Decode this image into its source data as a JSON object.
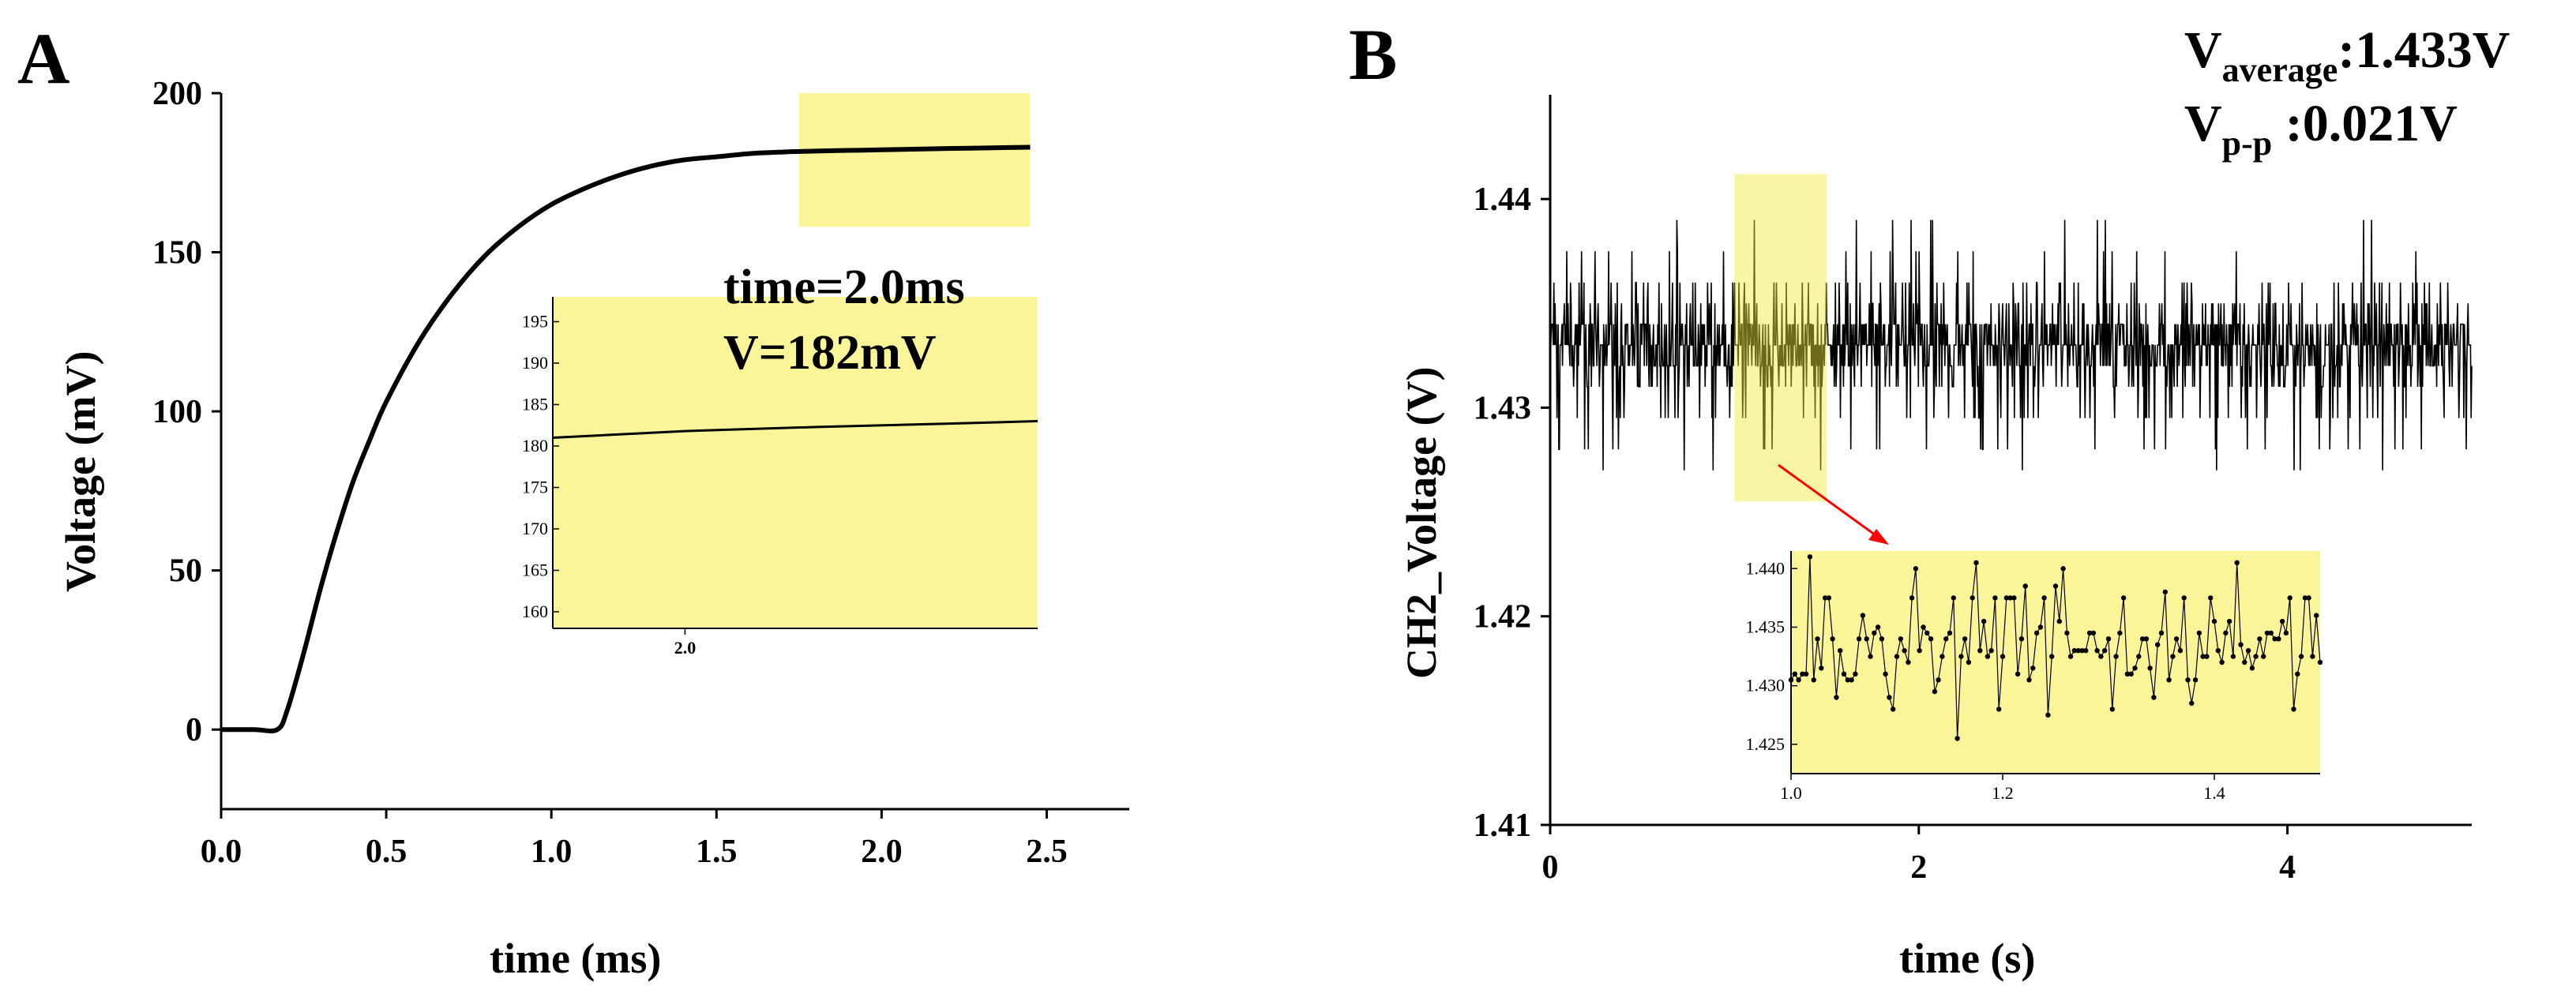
{
  "chart_data": [
    {
      "panel": "A",
      "type": "line",
      "xlabel": "time (ms)",
      "ylabel": "Voltage (mV)",
      "xlim": [
        0.0,
        2.75
      ],
      "ylim": [
        -25,
        200
      ],
      "xticks": [
        0.0,
        0.5,
        1.0,
        1.5,
        2.0,
        2.5
      ],
      "xtick_labels": [
        "0.0",
        "0.5",
        "1.0",
        "1.5",
        "2.0",
        "2.5"
      ],
      "yticks": [
        0,
        50,
        100,
        150,
        200
      ],
      "ytick_labels": [
        "0",
        "50",
        "100",
        "150",
        "200"
      ],
      "series": [
        {
          "name": "Voltage",
          "x": [
            0.0,
            0.1,
            0.17,
            0.2,
            0.25,
            0.3,
            0.35,
            0.4,
            0.45,
            0.5,
            0.6,
            0.7,
            0.8,
            0.9,
            1.0,
            1.1,
            1.2,
            1.3,
            1.4,
            1.5,
            1.6,
            1.7,
            1.8,
            1.9,
            2.0,
            2.2,
            2.45
          ],
          "y": [
            0,
            0,
            0,
            6,
            24,
            44,
            62,
            78,
            91,
            103,
            122,
            137,
            149,
            158,
            165,
            170,
            174,
            177,
            179,
            180,
            181,
            181.5,
            181.8,
            182,
            182.2,
            182.6,
            183
          ]
        }
      ],
      "highlight": {
        "x": [
          1.75,
          2.45
        ],
        "y": [
          158,
          200
        ]
      },
      "annotation": {
        "line1": "time=2.0ms",
        "line2": "V=182mV"
      },
      "inset": {
        "ylim": [
          158,
          198
        ],
        "xlim": [
          1.97,
          2.08
        ],
        "yticks": [
          160,
          165,
          170,
          175,
          180,
          185,
          190,
          195
        ],
        "ytick_labels": [
          "160",
          "165",
          "170",
          "175",
          "180",
          "185",
          "190",
          "195"
        ],
        "xtick_labels": [
          "2.0"
        ],
        "xticks": [
          2.0
        ],
        "series": {
          "x": [
            1.97,
            2.0,
            2.03,
            2.06,
            2.08
          ],
          "y": [
            181,
            181.8,
            182.3,
            182.7,
            183
          ]
        }
      }
    },
    {
      "panel": "B",
      "type": "line",
      "xlabel": "time (s)",
      "ylabel": "CH2_Voltage (V)",
      "xlim": [
        0,
        5
      ],
      "ylim": [
        1.41,
        1.445
      ],
      "xticks": [
        0,
        2,
        4
      ],
      "xtick_labels": [
        "0",
        "2",
        "4"
      ],
      "yticks": [
        1.41,
        1.42,
        1.43,
        1.44
      ],
      "ytick_labels": [
        "1.41",
        "1.42",
        "1.43",
        "1.44"
      ],
      "noise": {
        "mean": 1.433,
        "levels": [
          1.4255,
          1.427,
          1.428,
          1.4295,
          1.431,
          1.432,
          1.433,
          1.434,
          1.435,
          1.436,
          1.4375,
          1.439,
          1.4405
        ],
        "samples": 1500
      },
      "highlight": {
        "x": [
          1.0,
          1.5
        ],
        "y": [
          1.4255,
          1.4412
        ]
      },
      "stats": {
        "average_label": "V",
        "average_sub": "average",
        "average_value": ":1.433V",
        "pp_label": "V",
        "pp_sub": "p-p",
        "pp_value": " :0.021V"
      },
      "inset": {
        "xlim": [
          1.0,
          1.5
        ],
        "ylim": [
          1.4225,
          1.4415
        ],
        "xticks": [
          1.0,
          1.2,
          1.4
        ],
        "xtick_labels": [
          "1.0",
          "1.2",
          "1.4"
        ],
        "yticks": [
          1.425,
          1.43,
          1.435,
          1.44
        ],
        "ytick_labels": [
          "1.425",
          "1.430",
          "1.435",
          "1.440"
        ],
        "points": [
          1.4305,
          1.431,
          1.4305,
          1.431,
          1.431,
          1.441,
          1.4305,
          1.434,
          1.4315,
          1.4375,
          1.4375,
          1.434,
          1.429,
          1.433,
          1.431,
          1.4305,
          1.4305,
          1.431,
          1.434,
          1.436,
          1.434,
          1.4325,
          1.4345,
          1.435,
          1.434,
          1.431,
          1.429,
          1.428,
          1.4325,
          1.434,
          1.433,
          1.432,
          1.4375,
          1.44,
          1.433,
          1.435,
          1.4345,
          1.434,
          1.4295,
          1.4305,
          1.4325,
          1.434,
          1.4345,
          1.4375,
          1.4255,
          1.4325,
          1.434,
          1.432,
          1.4375,
          1.4405,
          1.433,
          1.4355,
          1.4325,
          1.433,
          1.4375,
          1.428,
          1.4325,
          1.4375,
          1.4375,
          1.4375,
          1.431,
          1.434,
          1.4385,
          1.4305,
          1.4315,
          1.4345,
          1.435,
          1.4375,
          1.4275,
          1.4325,
          1.4385,
          1.4355,
          1.44,
          1.4345,
          1.4325,
          1.433,
          1.433,
          1.433,
          1.433,
          1.4345,
          1.4345,
          1.433,
          1.4325,
          1.433,
          1.434,
          1.428,
          1.4325,
          1.4345,
          1.4375,
          1.431,
          1.431,
          1.4315,
          1.4325,
          1.434,
          1.434,
          1.4315,
          1.429,
          1.4335,
          1.4345,
          1.438,
          1.4305,
          1.4325,
          1.434,
          1.433,
          1.4375,
          1.4305,
          1.4285,
          1.4305,
          1.4345,
          1.4325,
          1.4325,
          1.4375,
          1.4355,
          1.433,
          1.432,
          1.4345,
          1.4355,
          1.4325,
          1.4405,
          1.4335,
          1.432,
          1.433,
          1.4315,
          1.4325,
          1.434,
          1.4325,
          1.4345,
          1.4345,
          1.434,
          1.434,
          1.4355,
          1.4345,
          1.4375,
          1.428,
          1.431,
          1.4325,
          1.4375,
          1.4375,
          1.4325,
          1.436,
          1.432
        ]
      }
    }
  ],
  "colors": {
    "highlight": "#fbf59a",
    "arrow": "#ff0000",
    "line": "#000000"
  }
}
